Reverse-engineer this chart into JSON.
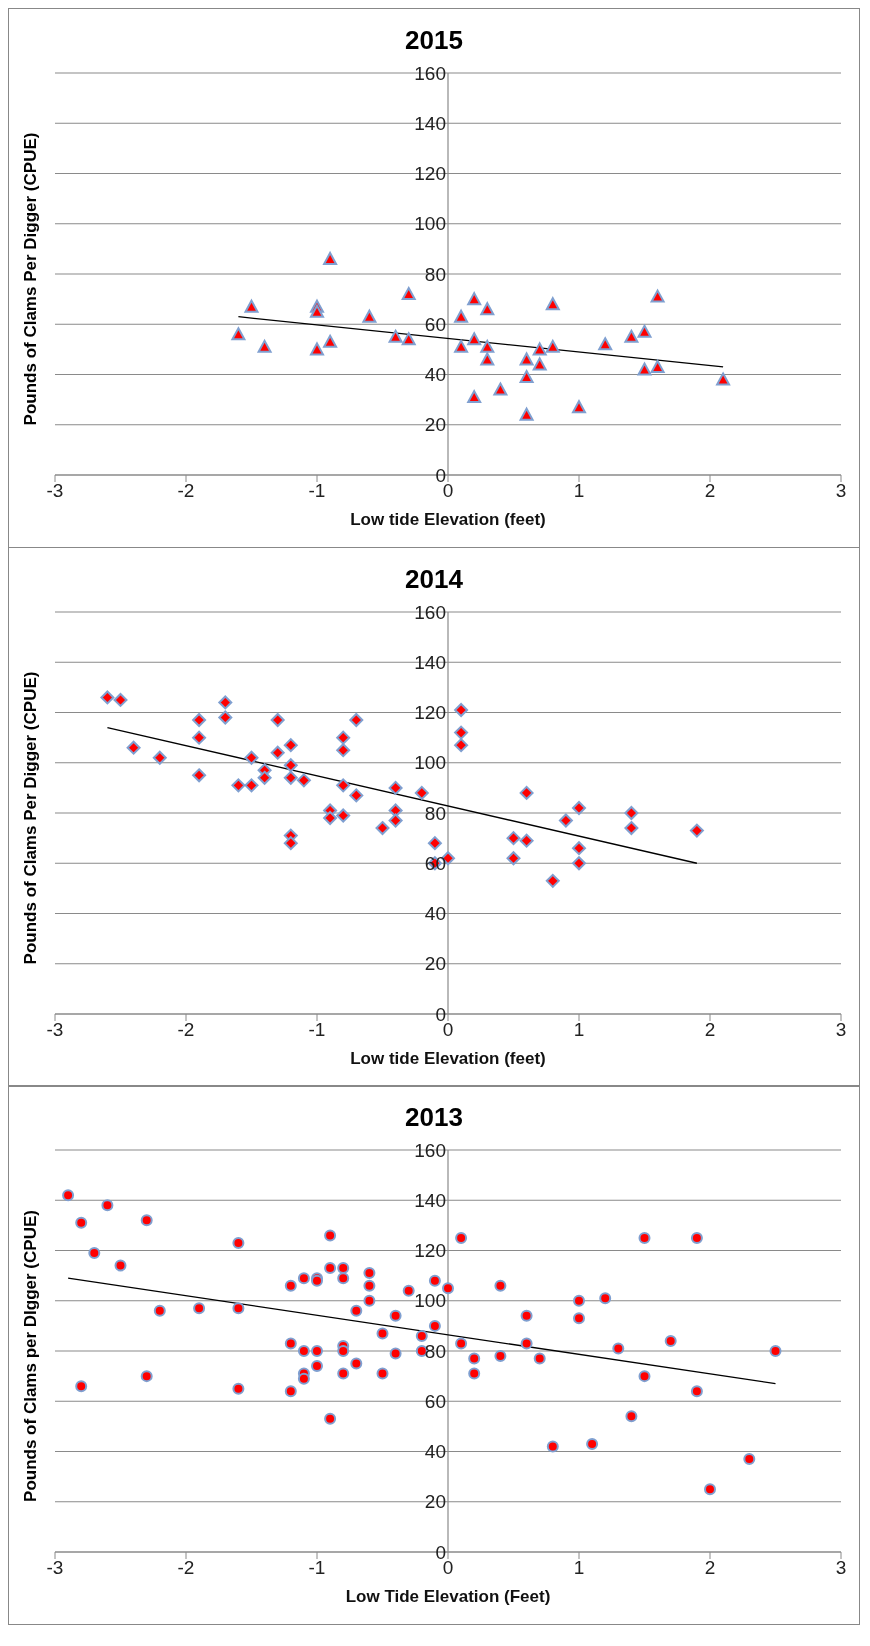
{
  "chart_data": [
    {
      "type": "scatter",
      "title": "2015",
      "xlabel": "Low tide Elevation (feet)",
      "ylabel": "Pounds of Clams Per Digger (CPUE)",
      "xlim": [
        -3,
        3
      ],
      "xticks": [
        -3,
        -2,
        -1,
        0,
        1,
        2,
        3
      ],
      "ylim": [
        0,
        160
      ],
      "yticks": [
        0,
        20,
        40,
        60,
        80,
        100,
        120,
        140,
        160
      ],
      "grid": "y",
      "marker": "triangle",
      "series": [
        {
          "color": "#ff0000",
          "x": [
            -1.6,
            -1.5,
            -1.4,
            -1.0,
            -1.0,
            -1.0,
            -0.9,
            -0.9,
            -0.6,
            -0.4,
            -0.3,
            -0.3,
            0.1,
            0.1,
            0.2,
            0.2,
            0.2,
            0.3,
            0.3,
            0.3,
            0.4,
            0.6,
            0.6,
            0.6,
            0.7,
            0.7,
            0.8,
            0.8,
            1.0,
            1.2,
            1.4,
            1.5,
            1.5,
            1.6,
            1.6,
            2.1
          ],
          "values": [
            56,
            67,
            51,
            67,
            65,
            50,
            86,
            53,
            63,
            55,
            72,
            54,
            63,
            51,
            70,
            54,
            31,
            66,
            51,
            46,
            34,
            46,
            39,
            24,
            50,
            44,
            68,
            51,
            27,
            52,
            55,
            57,
            42,
            71,
            43,
            38
          ]
        },
        {
          "type": "line",
          "color": "#000000",
          "marker": "none",
          "x": [
            -1.6,
            2.1
          ],
          "values": [
            63,
            43
          ]
        }
      ]
    },
    {
      "type": "scatter",
      "title": "2014",
      "xlabel": "Low tide Elevation (feet)",
      "ylabel": "Pounds of Clams Per Digger (CPUE)",
      "xlim": [
        -3,
        3
      ],
      "xticks": [
        -3,
        -2,
        -1,
        0,
        1,
        2,
        3
      ],
      "ylim": [
        0,
        160
      ],
      "yticks": [
        0,
        20,
        40,
        60,
        80,
        100,
        120,
        140,
        160
      ],
      "grid": "y",
      "marker": "diamond",
      "series": [
        {
          "color": "#ff0000",
          "x": [
            -2.6,
            -2.5,
            -2.4,
            -2.2,
            -1.9,
            -1.9,
            -1.9,
            -1.7,
            -1.7,
            -1.6,
            -1.5,
            -1.5,
            -1.4,
            -1.4,
            -1.3,
            -1.3,
            -1.2,
            -1.2,
            -1.2,
            -1.2,
            -1.2,
            -1.1,
            -0.9,
            -0.9,
            -0.8,
            -0.8,
            -0.8,
            -0.8,
            -0.7,
            -0.7,
            -0.5,
            -0.4,
            -0.4,
            -0.4,
            -0.2,
            -0.1,
            -0.1,
            0.0,
            0.1,
            0.1,
            0.1,
            0.5,
            0.5,
            0.6,
            0.6,
            0.8,
            0.9,
            1.0,
            1.0,
            1.0,
            1.4,
            1.4,
            1.9
          ],
          "values": [
            126,
            125,
            106,
            102,
            117,
            110,
            95,
            124,
            118,
            91,
            102,
            91,
            97,
            94,
            117,
            104,
            107,
            99,
            94,
            71,
            68,
            93,
            81,
            78,
            110,
            105,
            91,
            79,
            117,
            87,
            74,
            90,
            81,
            77,
            88,
            68,
            60,
            62,
            121,
            112,
            107,
            70,
            62,
            88,
            69,
            53,
            77,
            82,
            66,
            60,
            80,
            74,
            73
          ]
        },
        {
          "type": "line",
          "color": "#000000",
          "marker": "none",
          "x": [
            -2.6,
            1.9
          ],
          "values": [
            114,
            60
          ]
        }
      ]
    },
    {
      "type": "scatter",
      "title": "2013",
      "xlabel": "Low Tide Elevation (Feet)",
      "ylabel": "Pounds of Clams per DIgger (CPUE)",
      "xlim": [
        -3,
        3
      ],
      "xticks": [
        -3,
        -2,
        -1,
        0,
        1,
        2,
        3
      ],
      "ylim": [
        0,
        160
      ],
      "yticks": [
        0,
        20,
        40,
        60,
        80,
        100,
        120,
        140,
        160
      ],
      "grid": "y",
      "marker": "circle",
      "series": [
        {
          "color": "#ff0000",
          "x": [
            -2.9,
            -2.8,
            -2.8,
            -2.7,
            -2.6,
            -2.5,
            -2.3,
            -2.3,
            -2.2,
            -1.9,
            -1.6,
            -1.6,
            -1.6,
            -1.2,
            -1.2,
            -1.2,
            -1.1,
            -1.1,
            -1.1,
            -1.1,
            -1.0,
            -1.0,
            -1.0,
            -1.0,
            -0.9,
            -0.9,
            -0.9,
            -0.8,
            -0.8,
            -0.8,
            -0.8,
            -0.8,
            -0.7,
            -0.7,
            -0.6,
            -0.6,
            -0.6,
            -0.5,
            -0.5,
            -0.4,
            -0.4,
            -0.3,
            -0.2,
            -0.2,
            -0.1,
            -0.1,
            0.0,
            0.1,
            0.1,
            0.2,
            0.2,
            0.4,
            0.4,
            0.6,
            0.6,
            0.7,
            0.8,
            1.0,
            1.0,
            1.1,
            1.2,
            1.3,
            1.4,
            1.5,
            1.5,
            1.7,
            1.9,
            1.9,
            2.0,
            2.3,
            2.5
          ],
          "values": [
            142,
            131,
            66,
            119,
            138,
            114,
            132,
            70,
            96,
            97,
            123,
            97,
            65,
            106,
            83,
            64,
            109,
            80,
            71,
            69,
            109,
            108,
            80,
            74,
            126,
            113,
            53,
            113,
            109,
            82,
            80,
            71,
            96,
            75,
            111,
            106,
            100,
            87,
            71,
            94,
            79,
            104,
            86,
            80,
            108,
            90,
            105,
            125,
            83,
            77,
            71,
            106,
            78,
            94,
            83,
            77,
            42,
            100,
            93,
            43,
            101,
            81,
            54,
            125,
            70,
            84,
            125,
            64,
            25,
            37,
            80
          ]
        },
        {
          "type": "line",
          "color": "#000000",
          "marker": "none",
          "x": [
            -2.9,
            2.5
          ],
          "values": [
            109,
            67
          ]
        }
      ]
    }
  ]
}
